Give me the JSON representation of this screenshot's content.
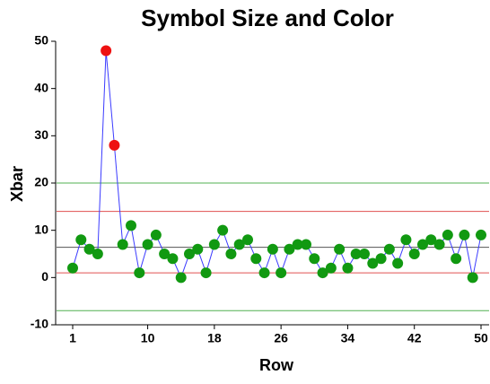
{
  "chart_data": {
    "type": "line",
    "title": "Symbol Size and Color",
    "x_label": "Row",
    "y_label": "Xbar",
    "x": [
      1,
      2,
      3,
      4,
      5,
      6,
      7,
      8,
      9,
      10,
      11,
      12,
      13,
      14,
      15,
      16,
      17,
      18,
      19,
      20,
      21,
      22,
      23,
      24,
      25,
      26,
      27,
      28,
      29,
      30,
      31,
      32,
      33,
      34,
      35,
      36,
      37,
      38,
      39,
      40,
      41,
      42,
      43,
      44,
      45,
      46,
      47,
      48,
      49,
      50
    ],
    "series": [
      {
        "name": "Xbar",
        "color": "#3b3bff",
        "marker_color": "#119911",
        "outlier_color": "#ee1111",
        "values": [
          2,
          8,
          6,
          5,
          48,
          28,
          7,
          11,
          1,
          7,
          9,
          5,
          4,
          0,
          5,
          6,
          1,
          7,
          10,
          5,
          7,
          8,
          4,
          1,
          6,
          1,
          6,
          7,
          7,
          4,
          1,
          2,
          6,
          2,
          5,
          5,
          3,
          4,
          6,
          3,
          8,
          5,
          7,
          8,
          7,
          9,
          4,
          9,
          0,
          9
        ]
      }
    ],
    "reference_lines": [
      {
        "value": 6.4,
        "color": "#555555"
      },
      {
        "value": 14,
        "color": "#e05050"
      },
      {
        "value": 1,
        "color": "#e05050"
      },
      {
        "value": 20,
        "color": "#50b050"
      },
      {
        "value": -7,
        "color": "#50b050"
      }
    ],
    "upper_limit_index": 1,
    "xlim": [
      1,
      50
    ],
    "xticks": [
      1,
      10,
      18,
      26,
      34,
      42,
      50
    ],
    "ylim": [
      -10,
      50
    ],
    "yticks": [
      -10,
      0,
      10,
      20,
      30,
      40,
      50
    ]
  }
}
